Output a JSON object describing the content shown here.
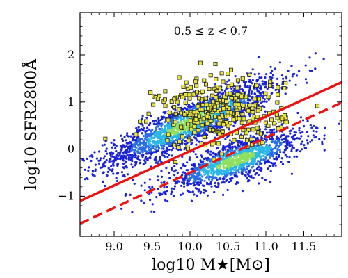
{
  "chart_data": {
    "type": "scatter",
    "title": "",
    "annotation": "0.5 ≤ z < 0.7",
    "xlabel": "log10 M★[M⊙]",
    "ylabel": "log10 SFR2800Å",
    "xlim": [
      8.55,
      12.0
    ],
    "ylim": [
      -1.85,
      2.9
    ],
    "x_ticks": [
      9.0,
      9.5,
      10.0,
      10.5,
      11.0,
      11.5
    ],
    "x_tick_labels": [
      "9.0",
      "9.5",
      "10.0",
      "10.5",
      "11.0",
      "11.5"
    ],
    "y_ticks": [
      -1,
      0,
      1,
      2
    ],
    "y_tick_labels": [
      "−1",
      "0",
      "1",
      "2"
    ],
    "grid": false,
    "colors": {
      "density_low": "#1a22d6",
      "density_mid": "#2bb7e8",
      "density_high": "#8fe060",
      "highlight_fill": "#e8e43a",
      "highlight_edge": "#222222",
      "line": "#ee1111"
    },
    "density_clouds": [
      {
        "name": "star-forming",
        "cx": 10.0,
        "cy": 0.55,
        "slope": 0.72,
        "sx": 0.55,
        "sy": 0.22,
        "n": 2200
      },
      {
        "name": "quiescent",
        "cx": 10.6,
        "cy": -0.25,
        "slope": 0.55,
        "sx": 0.45,
        "sy": 0.2,
        "n": 1400
      }
    ],
    "highlight_cloud": {
      "cx": 10.4,
      "cy": 0.78,
      "sx": 0.42,
      "sy": 0.38,
      "n": 300
    },
    "lines": [
      {
        "style": "solid",
        "x": [
          8.55,
          12.0
        ],
        "y": [
          -1.1,
          1.42
        ]
      },
      {
        "style": "dashed",
        "x": [
          8.55,
          12.0
        ],
        "y": [
          -1.58,
          0.99
        ]
      }
    ]
  }
}
